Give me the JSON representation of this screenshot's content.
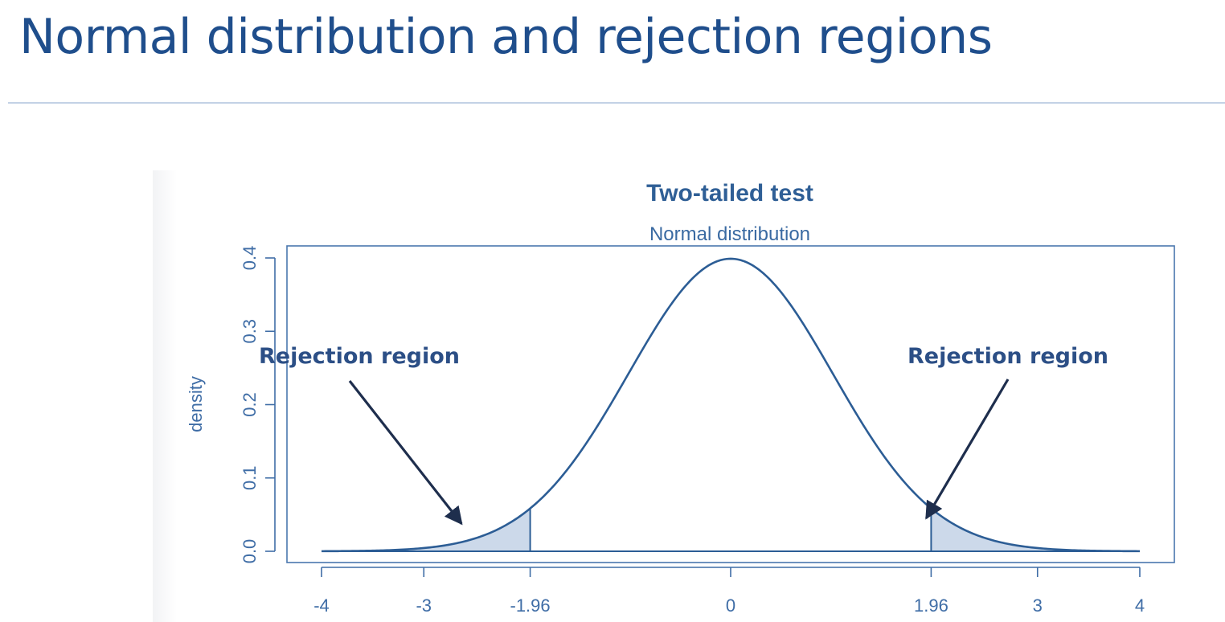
{
  "slide": {
    "title": "Normal distribution and rejection regions"
  },
  "chart_data": {
    "type": "area",
    "title": "Two-tailed test",
    "subtitle": "Normal distribution",
    "xlabel": "",
    "ylabel": "density",
    "xlim": [
      -4,
      4
    ],
    "ylim": [
      0,
      0.4
    ],
    "x_ticks": [
      -4,
      -3,
      -1.96,
      0,
      1.96,
      3,
      4
    ],
    "x_tick_labels": [
      "-4",
      "-3",
      "-1.96",
      "0",
      "1.96",
      "3",
      "4"
    ],
    "y_ticks": [
      0.0,
      0.1,
      0.2,
      0.3,
      0.4
    ],
    "y_tick_labels": [
      "0.0",
      "0.1",
      "0.2",
      "0.3",
      "0.4"
    ],
    "series": [
      {
        "distribution": "standard normal",
        "mean": 0,
        "sd": 1,
        "x_range": [
          -4,
          4
        ],
        "color": "#2c5d95"
      }
    ],
    "shaded_regions": [
      {
        "from": -4,
        "to": -1.96,
        "fill": "#ccd9ea"
      },
      {
        "from": 1.96,
        "to": 4,
        "fill": "#ccd9ea"
      }
    ],
    "annotations": [
      {
        "text": "Rejection region",
        "side": "left",
        "points_to": -2.6
      },
      {
        "text": "Rejection region",
        "side": "right",
        "points_to": 1.96
      }
    ],
    "grid": false,
    "legend": "none"
  },
  "colors": {
    "title": "#1f4e8c",
    "axis": "#3f6da6",
    "curve": "#2c5d95",
    "shade": "#ccd9ea",
    "arrow": "#1e2e4d"
  }
}
